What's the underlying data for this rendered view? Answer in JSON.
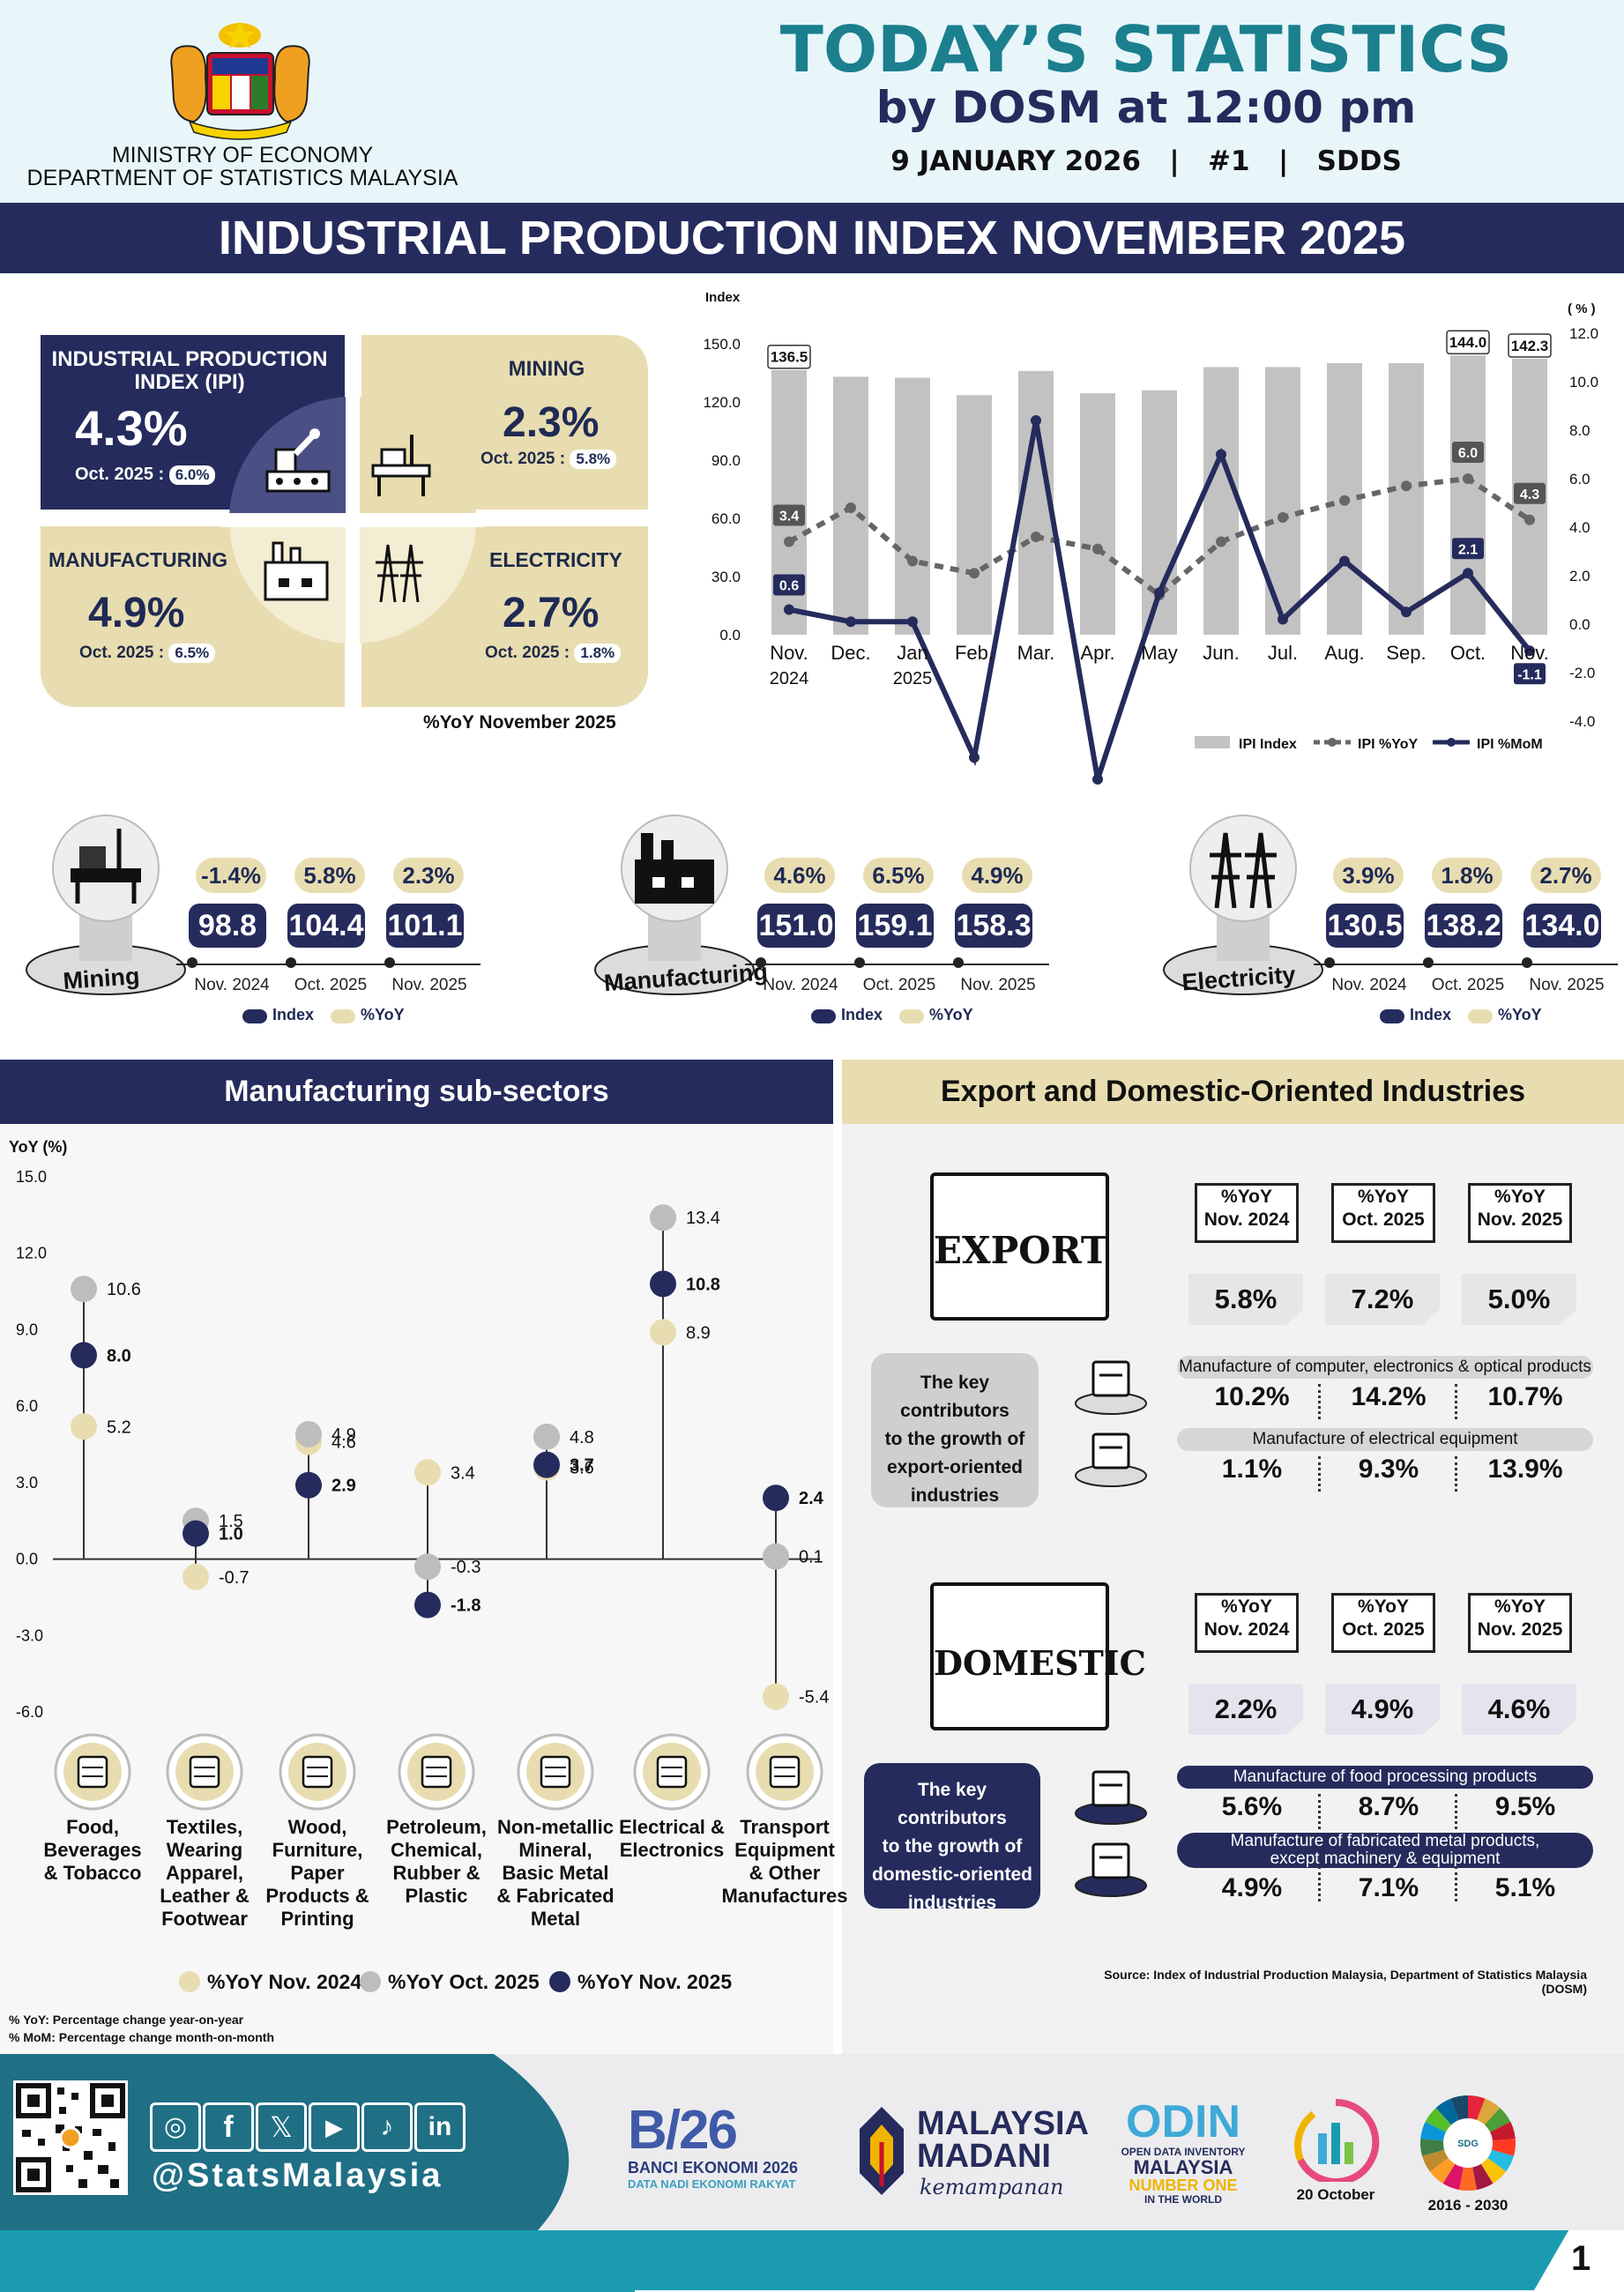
{
  "header": {
    "ministry_line1": "MINISTRY OF ECONOMY",
    "ministry_line2": "DEPARTMENT OF STATISTICS MALAYSIA",
    "title": "TODAY’S STATISTICS",
    "subtitle": "by DOSM at 12:00 pm",
    "date_line": "9 JANUARY 2026   |   #1   |   SDDS"
  },
  "banner_title": "INDUSTRIAL PRODUCTION INDEX NOVEMBER 2025",
  "quadrants": {
    "ipi": {
      "label_line1": "INDUSTRIAL PRODUCTION",
      "label_line2": "INDEX (IPI)",
      "value": "4.3%",
      "prev_label": "Oct. 2025 :",
      "prev_value": "6.0%"
    },
    "mining": {
      "label": "MINING",
      "value": "2.3%",
      "prev_label": "Oct. 2025 :",
      "prev_value": "5.8%"
    },
    "manufacturing": {
      "label": "MANUFACTURING",
      "value": "4.9%",
      "prev_label": "Oct. 2025 :",
      "prev_value": "6.5%"
    },
    "electricity": {
      "label": "ELECTRICITY",
      "value": "2.7%",
      "prev_label": "Oct. 2025 :",
      "prev_value": "1.8%"
    },
    "footnote": "%YoY November 2025"
  },
  "sectors": [
    {
      "name": "Mining",
      "yoy": [
        "-1.4%",
        "5.8%",
        "2.3%"
      ],
      "index": [
        "98.8",
        "104.4",
        "101.1"
      ],
      "periods": [
        "Nov. 2024",
        "Oct. 2025",
        "Nov. 2025"
      ],
      "legend_index": "Index",
      "legend_yoy": "%YoY"
    },
    {
      "name": "Manufacturing",
      "yoy": [
        "4.6%",
        "6.5%",
        "4.9%"
      ],
      "index": [
        "151.0",
        "159.1",
        "158.3"
      ],
      "periods": [
        "Nov. 2024",
        "Oct. 2025",
        "Nov. 2025"
      ],
      "legend_index": "Index",
      "legend_yoy": "%YoY"
    },
    {
      "name": "Electricity",
      "yoy": [
        "3.9%",
        "1.8%",
        "2.7%"
      ],
      "index": [
        "130.5",
        "138.2",
        "134.0"
      ],
      "periods": [
        "Nov. 2024",
        "Oct. 2025",
        "Nov. 2025"
      ],
      "legend_index": "Index",
      "legend_yoy": "%YoY"
    }
  ],
  "subsectors_title": "Manufacturing sub-sectors",
  "export_domestic_title": "Export and Domestic-Oriented Industries",
  "export": {
    "label": "EXPORT",
    "headers": [
      [
        "%YoY",
        "Nov. 2024"
      ],
      [
        "%YoY",
        "Oct. 2025"
      ],
      [
        "%YoY",
        "Nov. 2025"
      ]
    ],
    "values": [
      "5.8%",
      "7.2%",
      "5.0%"
    ],
    "contrib_text": [
      "The key contributors",
      "to the growth of",
      "export-oriented",
      "industries"
    ],
    "items": [
      {
        "label": "Manufacture of computer, electronics & optical products",
        "values": [
          "10.2%",
          "14.2%",
          "10.7%"
        ]
      },
      {
        "label": "Manufacture of electrical equipment",
        "values": [
          "1.1%",
          "9.3%",
          "13.9%"
        ]
      }
    ]
  },
  "domestic": {
    "label": "DOMESTIC",
    "headers": [
      [
        "%YoY",
        "Nov. 2024"
      ],
      [
        "%YoY",
        "Oct. 2025"
      ],
      [
        "%YoY",
        "Nov. 2025"
      ]
    ],
    "values": [
      "2.2%",
      "4.9%",
      "4.6%"
    ],
    "contrib_text": [
      "The key contributors",
      "to the growth of",
      "domestic-oriented",
      "industries"
    ],
    "items": [
      {
        "label": "Manufacture of food processing products",
        "values": [
          "5.6%",
          "8.7%",
          "9.5%"
        ]
      },
      {
        "label_line1": "Manufacture of fabricated metal products,",
        "label_line2": "except machinery & equipment",
        "values": [
          "4.9%",
          "7.1%",
          "5.1%"
        ]
      }
    ]
  },
  "source": "Source: Index of Industrial Production Malaysia, Department of Statistics Malaysia (DOSM)",
  "notes": [
    "% YoY: Percentage change year-on-year",
    "% MoM: Percentage change month-on-month"
  ],
  "footer": {
    "handle": "@StatsMalaysia",
    "banci_line1": "BANCI EKONOMI 2026",
    "banci_line2": "DATA NADI EKONOMI RAKYAT",
    "madani_line1": "MALAYSIA",
    "madani_line2": "MADANI",
    "madani_line3": "kemampanan",
    "odin_line1": "OPEN DATA INVENTORY",
    "odin_line2": "MALAYSIA",
    "odin_line3": "NUMBER ONE",
    "odin_line4": "IN THE WORLD",
    "stats_day": "20 October",
    "sdg_years": "2016 - 2030",
    "page_number": "1"
  },
  "colors": {
    "navy": "#252b5c",
    "beige": "#e8ddb0",
    "grey": "#bdbdbd",
    "light_blue": "#e8f6fa",
    "teal": "#1a9bb0"
  },
  "chart_data": [
    {
      "type": "bar",
      "categories": [
        "Nov.\n2024",
        "Dec.",
        "Jan\n2025",
        "Feb.",
        "Mar.",
        "Apr.",
        "May",
        "Jun.",
        "Jul.",
        "Aug.",
        "Sep.",
        "Oct.",
        "Nov."
      ],
      "ylabel": "Index",
      "y2label": "( % )",
      "ylim": [
        0,
        150
      ],
      "y2lim": [
        -4,
        12
      ],
      "yticks": [
        "150.0",
        "120.0",
        "90.0",
        "60.0",
        "30.0",
        "0.0"
      ],
      "y2ticks": [
        "12.0",
        "10.0",
        "8.0",
        "6.0",
        "4.0",
        "2.0",
        "0.0",
        "-2.0",
        "-4.0"
      ],
      "series": [
        {
          "name": "IPI Index",
          "kind": "bar",
          "values": [
            136.5,
            133.0,
            132.5,
            123.5,
            136.0,
            124.5,
            126.0,
            138.0,
            138.0,
            140.0,
            140.0,
            144.0,
            142.3
          ]
        },
        {
          "name": "IPI %YoY",
          "kind": "dashed",
          "values": [
            3.4,
            4.8,
            2.6,
            2.1,
            3.6,
            3.1,
            1.2,
            3.4,
            4.4,
            5.1,
            5.7,
            6.0,
            4.3
          ]
        },
        {
          "name": "IPI %MoM",
          "kind": "line",
          "values": [
            0.6,
            0.1,
            0.1,
            -5.5,
            8.4,
            -6.4,
            1.3,
            7.0,
            0.2,
            2.6,
            0.5,
            2.1,
            -1.1
          ]
        }
      ],
      "labels": [
        {
          "series": "IPI Index",
          "index": 0,
          "text": "136.5"
        },
        {
          "series": "IPI Index",
          "index": 11,
          "text": "144.0"
        },
        {
          "series": "IPI Index",
          "index": 12,
          "text": "142.3"
        },
        {
          "series": "IPI %YoY",
          "index": 0,
          "text": "3.4"
        },
        {
          "series": "IPI %YoY",
          "index": 11,
          "text": "6.0"
        },
        {
          "series": "IPI %YoY",
          "index": 12,
          "text": "4.3"
        },
        {
          "series": "IPI %MoM",
          "index": 0,
          "text": "0.6"
        },
        {
          "series": "IPI %MoM",
          "index": 11,
          "text": "2.1"
        },
        {
          "series": "IPI %MoM",
          "index": 12,
          "text": "-1.1"
        }
      ],
      "legend": [
        "IPI Index",
        "IPI %YoY",
        "IPI %MoM"
      ]
    },
    {
      "type": "scatter",
      "ylabel": "YoY (%)",
      "ylim": [
        -6,
        15
      ],
      "yticks": [
        "15.0",
        "12.0",
        "9.0",
        "6.0",
        "3.0",
        "0.0",
        "-3.0",
        "-6.0"
      ],
      "categories": [
        [
          "Food,",
          "Beverages",
          "& Tobacco"
        ],
        [
          "Textiles,",
          "Wearing",
          "Apparel,",
          "Leather &",
          "Footwear"
        ],
        [
          "Wood,",
          "Furniture,",
          "Paper",
          "Products &",
          "Printing"
        ],
        [
          "Petroleum,",
          "Chemical,",
          "Rubber &",
          "Plastic"
        ],
        [
          "Non-metallic",
          "Mineral,",
          "Basic Metal",
          "& Fabricated",
          "Metal"
        ],
        [
          "Electrical &",
          "Electronics"
        ],
        [
          "Transport",
          "Equipment",
          "& Other",
          "Manufactures"
        ]
      ],
      "series": [
        {
          "name": "%YoY Nov. 2024",
          "values": [
            5.2,
            -0.7,
            4.6,
            3.4,
            3.6,
            8.9,
            -5.4
          ],
          "labels": [
            "5.2",
            "-0.7",
            "4.6",
            "3.4",
            "3.6",
            "8.9",
            "-5.4"
          ]
        },
        {
          "name": "%YoY Oct. 2025",
          "values": [
            10.6,
            1.5,
            4.9,
            -0.3,
            4.8,
            13.4,
            0.1
          ],
          "labels": [
            "10.6",
            "1.5",
            "4.9",
            "-0.3",
            "4.8",
            "13.4",
            "0.1"
          ]
        },
        {
          "name": "%YoY Nov. 2025",
          "values": [
            8.0,
            1.0,
            2.9,
            -1.8,
            3.7,
            10.8,
            2.4
          ],
          "labels": [
            "8.0",
            "1.0",
            "2.9",
            "-1.8",
            "3.7",
            "10.8",
            "2.4"
          ]
        }
      ],
      "legend": [
        "%YoY Nov. 2024",
        "%YoY Oct. 2025",
        "%YoY Nov. 2025"
      ]
    }
  ]
}
